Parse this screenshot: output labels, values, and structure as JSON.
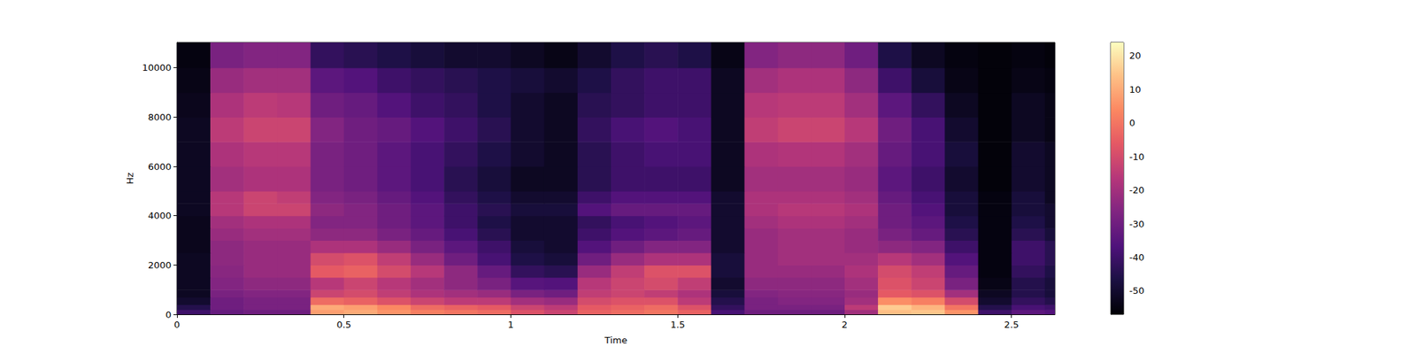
{
  "chart_data": {
    "type": "heatmap",
    "xlabel": "Time",
    "ylabel": "Hz",
    "xlim": [
      0,
      2.63
    ],
    "ylim": [
      0,
      11025
    ],
    "xticks": [
      0,
      0.5,
      1,
      1.5,
      2,
      2.5
    ],
    "yticks": [
      0,
      2000,
      4000,
      6000,
      8000,
      10000
    ],
    "grid": false,
    "x_bins": [
      0,
      0.1,
      0.2,
      0.3,
      0.4,
      0.5,
      0.6,
      0.7,
      0.8,
      0.9,
      1.0,
      1.1,
      1.2,
      1.3,
      1.4,
      1.5,
      1.6,
      1.7,
      1.8,
      1.9,
      2.0,
      2.1,
      2.2,
      2.3,
      2.4,
      2.5,
      2.6,
      2.63
    ],
    "y_bins": [
      0,
      200,
      400,
      700,
      1000,
      1500,
      2000,
      2500,
      3000,
      3500,
      4000,
      4500,
      5000,
      6000,
      7000,
      8000,
      9000,
      10000,
      11025
    ],
    "cells": [
      [
        -40,
        -32,
        -30,
        -30,
        8,
        10,
        6,
        2,
        0,
        -2,
        -8,
        -12,
        -4,
        -2,
        0,
        -4,
        -38,
        -30,
        -30,
        -30,
        -20,
        14,
        15,
        6,
        -40,
        -34,
        -36
      ],
      [
        -45,
        -30,
        -28,
        -28,
        10,
        8,
        4,
        -2,
        -4,
        -6,
        -12,
        -15,
        -6,
        -4,
        -2,
        -8,
        -42,
        -28,
        -28,
        -28,
        -15,
        16,
        12,
        0,
        -45,
        -38,
        -40
      ],
      [
        -50,
        -30,
        -28,
        -28,
        -2,
        -4,
        -8,
        -12,
        -15,
        -15,
        -20,
        -22,
        -10,
        -8,
        -8,
        -15,
        -45,
        -28,
        -26,
        -26,
        -20,
        5,
        2,
        -10,
        -50,
        -42,
        -45
      ],
      [
        -52,
        -28,
        -26,
        -26,
        -12,
        -10,
        -14,
        -18,
        -20,
        -22,
        -28,
        -30,
        -14,
        -12,
        -14,
        -18,
        -48,
        -26,
        -25,
        -25,
        -22,
        -6,
        -8,
        -20,
        -52,
        -45,
        -48
      ],
      [
        -52,
        -26,
        -24,
        -24,
        -16,
        -12,
        -16,
        -20,
        -24,
        -28,
        -35,
        -36,
        -16,
        -12,
        -10,
        -14,
        -50,
        -24,
        -24,
        -24,
        -20,
        -8,
        -12,
        -28,
        -54,
        -45,
        -48
      ],
      [
        -52,
        -25,
        -22,
        -22,
        -6,
        -4,
        -10,
        -16,
        -24,
        -32,
        -42,
        -44,
        -22,
        -14,
        -8,
        -8,
        -48,
        -22,
        -22,
        -22,
        -18,
        -10,
        -14,
        -32,
        -55,
        -42,
        -46
      ],
      [
        -52,
        -24,
        -22,
        -22,
        -10,
        -8,
        -14,
        -22,
        -30,
        -38,
        -46,
        -48,
        -30,
        -22,
        -18,
        -18,
        -48,
        -22,
        -20,
        -20,
        -20,
        -16,
        -20,
        -36,
        -55,
        -40,
        -44
      ],
      [
        -53,
        -24,
        -22,
        -22,
        -18,
        -18,
        -22,
        -28,
        -34,
        -40,
        -48,
        -50,
        -36,
        -30,
        -26,
        -26,
        -50,
        -22,
        -20,
        -20,
        -22,
        -24,
        -26,
        -40,
        -55,
        -40,
        -44
      ],
      [
        -53,
        -22,
        -20,
        -20,
        -24,
        -24,
        -28,
        -32,
        -38,
        -44,
        -50,
        -50,
        -40,
        -36,
        -34,
        -32,
        -50,
        -22,
        -20,
        -20,
        -22,
        -28,
        -32,
        -44,
        -55,
        -44,
        -48
      ],
      [
        -53,
        -20,
        -18,
        -18,
        -26,
        -26,
        -30,
        -34,
        -40,
        -46,
        -50,
        -50,
        -42,
        -38,
        -36,
        -34,
        -50,
        -20,
        -18,
        -18,
        -20,
        -30,
        -34,
        -46,
        -55,
        -46,
        -50
      ],
      [
        -52,
        -16,
        -12,
        -12,
        -24,
        -26,
        -30,
        -34,
        -40,
        -44,
        -48,
        -48,
        -36,
        -32,
        -32,
        -32,
        -50,
        -18,
        -16,
        -16,
        -18,
        -30,
        -36,
        -48,
        -55,
        -48,
        -50
      ],
      [
        -52,
        -16,
        -12,
        -14,
        -26,
        -28,
        -32,
        -36,
        -42,
        -46,
        -50,
        -50,
        -40,
        -36,
        -36,
        -36,
        -50,
        -18,
        -18,
        -18,
        -20,
        -32,
        -38,
        -48,
        -55,
        -48,
        -52
      ],
      [
        -52,
        -20,
        -18,
        -18,
        -28,
        -30,
        -34,
        -38,
        -44,
        -48,
        -52,
        -52,
        -44,
        -40,
        -40,
        -40,
        -52,
        -20,
        -20,
        -20,
        -22,
        -34,
        -40,
        -50,
        -56,
        -50,
        -52
      ],
      [
        -52,
        -18,
        -16,
        -16,
        -28,
        -30,
        -34,
        -38,
        -42,
        -46,
        -50,
        -52,
        -44,
        -40,
        -38,
        -38,
        -52,
        -18,
        -17,
        -17,
        -20,
        -32,
        -38,
        -48,
        -56,
        -50,
        -52
      ],
      [
        -52,
        -15,
        -12,
        -12,
        -26,
        -30,
        -32,
        -36,
        -40,
        -44,
        -50,
        -52,
        -42,
        -38,
        -36,
        -38,
        -52,
        -14,
        -12,
        -12,
        -16,
        -30,
        -38,
        -50,
        -56,
        -52,
        -54
      ],
      [
        -53,
        -18,
        -15,
        -16,
        -30,
        -32,
        -36,
        -40,
        -42,
        -46,
        -50,
        -52,
        -44,
        -42,
        -40,
        -40,
        -52,
        -16,
        -15,
        -15,
        -20,
        -34,
        -42,
        -52,
        -56,
        -52,
        -54
      ],
      [
        -54,
        -22,
        -20,
        -20,
        -34,
        -36,
        -40,
        -42,
        -44,
        -46,
        -48,
        -50,
        -46,
        -42,
        -40,
        -40,
        -52,
        -20,
        -18,
        -18,
        -24,
        -40,
        -48,
        -54,
        -56,
        -54,
        -55
      ],
      [
        -55,
        -28,
        -26,
        -26,
        -42,
        -44,
        -46,
        -48,
        -50,
        -50,
        -52,
        -54,
        -50,
        -46,
        -44,
        -46,
        -54,
        -26,
        -24,
        -24,
        -30,
        -46,
        -52,
        -55,
        -56,
        -55,
        -56
      ]
    ],
    "colorbar_lim": [
      -57,
      24
    ],
    "colorbar_ticks": [
      -50,
      -40,
      -30,
      -20,
      -10,
      0,
      10,
      20
    ]
  }
}
